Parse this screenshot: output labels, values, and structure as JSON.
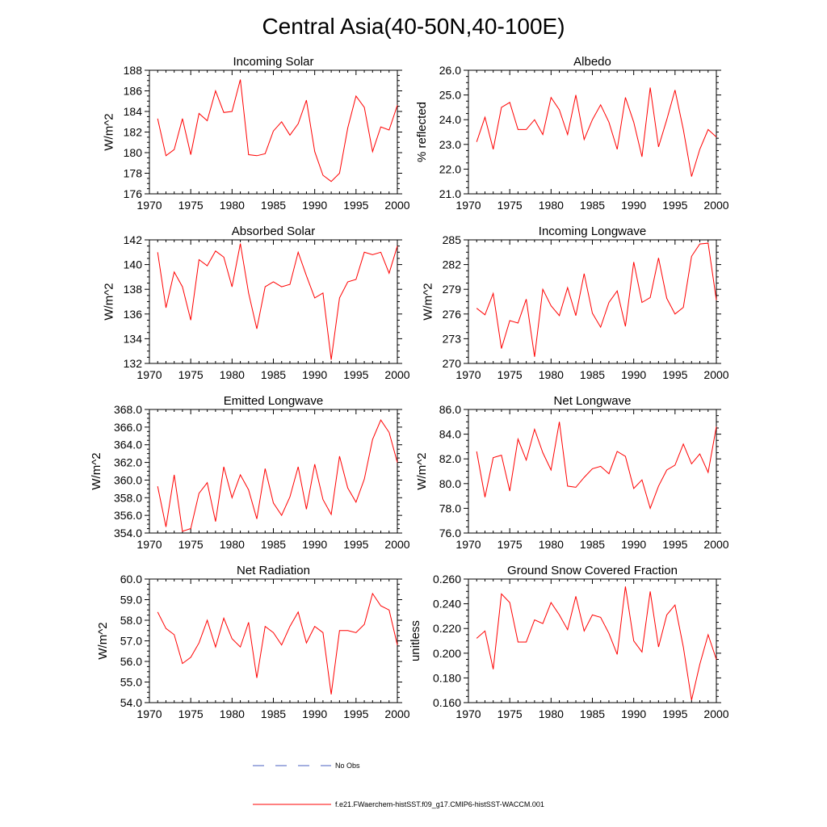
{
  "title": "Central Asia(40-50N,40-100E)",
  "legend": {
    "obs_label": "No Obs",
    "obs_color": "#4a5fc1",
    "model_label": "f.e21.FWaerchem-histSST.f09_g17.CMIP6-histSST-WACCM.001",
    "model_color": "#ff0000"
  },
  "chart_data": [
    {
      "type": "line",
      "title": "Incoming Solar",
      "ylabel": "W/m^2",
      "xlim": [
        1970,
        2000
      ],
      "ylim": [
        176,
        188
      ],
      "xticks": [
        "1970",
        "1975",
        "1980",
        "1985",
        "1990",
        "1995",
        "2000"
      ],
      "yticks": [
        "176",
        "178",
        "180",
        "182",
        "184",
        "186",
        "188"
      ],
      "x": [
        1971,
        1972,
        1973,
        1974,
        1975,
        1976,
        1977,
        1978,
        1979,
        1980,
        1981,
        1982,
        1983,
        1984,
        1985,
        1986,
        1987,
        1988,
        1989,
        1990,
        1991,
        1992,
        1993,
        1994,
        1995,
        1996,
        1997,
        1998,
        1999,
        2000
      ],
      "series": [
        {
          "color": "#ff0000",
          "values": [
            183.3,
            179.7,
            180.3,
            183.3,
            179.8,
            183.8,
            183.1,
            186.0,
            183.9,
            184.0,
            187.1,
            179.8,
            179.7,
            179.9,
            182.1,
            183.0,
            181.7,
            182.8,
            185.1,
            180.1,
            177.8,
            177.2,
            178.0,
            182.4,
            185.5,
            184.4,
            180.1,
            182.5,
            182.2,
            184.6
          ]
        }
      ]
    },
    {
      "type": "line",
      "title": "Albedo",
      "ylabel": "% reflected",
      "xlim": [
        1970,
        2000
      ],
      "ylim": [
        21.0,
        26.0
      ],
      "xticks": [
        "1970",
        "1975",
        "1980",
        "1985",
        "1990",
        "1995",
        "2000"
      ],
      "yticks": [
        "21.0",
        "22.0",
        "23.0",
        "24.0",
        "25.0",
        "26.0"
      ],
      "x": [
        1971,
        1972,
        1973,
        1974,
        1975,
        1976,
        1977,
        1978,
        1979,
        1980,
        1981,
        1982,
        1983,
        1984,
        1985,
        1986,
        1987,
        1988,
        1989,
        1990,
        1991,
        1992,
        1993,
        1994,
        1995,
        1996,
        1997,
        1998,
        1999,
        2000
      ],
      "series": [
        {
          "color": "#ff0000",
          "values": [
            23.1,
            24.1,
            22.8,
            24.5,
            24.7,
            23.6,
            23.6,
            24.0,
            23.4,
            24.9,
            24.4,
            23.4,
            25.0,
            23.2,
            24.0,
            24.6,
            23.9,
            22.8,
            24.9,
            23.9,
            22.5,
            25.3,
            22.9,
            24.0,
            25.2,
            23.6,
            21.7,
            22.8,
            23.6,
            23.3
          ]
        }
      ]
    },
    {
      "type": "line",
      "title": "Absorbed Solar",
      "ylabel": "W/m^2",
      "xlim": [
        1970,
        2000
      ],
      "ylim": [
        132,
        142
      ],
      "xticks": [
        "1970",
        "1975",
        "1980",
        "1985",
        "1990",
        "1995",
        "2000"
      ],
      "yticks": [
        "132",
        "134",
        "136",
        "138",
        "140",
        "142"
      ],
      "x": [
        1971,
        1972,
        1973,
        1974,
        1975,
        1976,
        1977,
        1978,
        1979,
        1980,
        1981,
        1982,
        1983,
        1984,
        1985,
        1986,
        1987,
        1988,
        1989,
        1990,
        1991,
        1992,
        1993,
        1994,
        1995,
        1996,
        1997,
        1998,
        1999,
        2000
      ],
      "series": [
        {
          "color": "#ff0000",
          "values": [
            141.0,
            136.5,
            139.4,
            138.2,
            135.5,
            140.4,
            139.9,
            141.1,
            140.6,
            138.2,
            141.7,
            137.7,
            134.8,
            138.2,
            138.6,
            138.2,
            138.4,
            141.0,
            139.1,
            137.3,
            137.7,
            132.3,
            137.3,
            138.6,
            138.8,
            141.0,
            140.8,
            141.0,
            139.3,
            141.5
          ]
        }
      ]
    },
    {
      "type": "line",
      "title": "Incoming Longwave",
      "ylabel": "W/m^2",
      "xlim": [
        1970,
        2000
      ],
      "ylim": [
        270,
        285
      ],
      "xticks": [
        "1970",
        "1975",
        "1980",
        "1985",
        "1990",
        "1995",
        "2000"
      ],
      "yticks": [
        "270",
        "273",
        "276",
        "279",
        "282",
        "285"
      ],
      "x": [
        1971,
        1972,
        1973,
        1974,
        1975,
        1976,
        1977,
        1978,
        1979,
        1980,
        1981,
        1982,
        1983,
        1984,
        1985,
        1986,
        1987,
        1988,
        1989,
        1990,
        1991,
        1992,
        1993,
        1994,
        1995,
        1996,
        1997,
        1998,
        1999,
        2000
      ],
      "series": [
        {
          "color": "#ff0000",
          "values": [
            276.7,
            275.9,
            278.5,
            271.8,
            275.2,
            274.9,
            277.8,
            270.8,
            279.0,
            277.0,
            275.8,
            279.2,
            275.8,
            280.9,
            276.1,
            274.4,
            277.4,
            278.8,
            274.5,
            282.3,
            277.4,
            278.0,
            282.8,
            277.9,
            276.0,
            276.8,
            283.0,
            284.5,
            284.6,
            277.7
          ]
        }
      ]
    },
    {
      "type": "line",
      "title": "Emitted Longwave",
      "ylabel": "W/m^2",
      "xlim": [
        1970,
        2000
      ],
      "ylim": [
        354.0,
        368.0
      ],
      "xticks": [
        "1970",
        "1975",
        "1980",
        "1985",
        "1990",
        "1995",
        "2000"
      ],
      "yticks": [
        "354.0",
        "356.0",
        "358.0",
        "360.0",
        "362.0",
        "364.0",
        "366.0",
        "368.0"
      ],
      "x": [
        1971,
        1972,
        1973,
        1974,
        1975,
        1976,
        1977,
        1978,
        1979,
        1980,
        1981,
        1982,
        1983,
        1984,
        1985,
        1986,
        1987,
        1988,
        1989,
        1990,
        1991,
        1992,
        1993,
        1994,
        1995,
        1996,
        1997,
        1998,
        1999,
        2000
      ],
      "series": [
        {
          "color": "#ff0000",
          "values": [
            359.3,
            354.7,
            360.6,
            354.2,
            354.5,
            358.5,
            359.7,
            355.3,
            361.5,
            358.0,
            360.6,
            358.9,
            355.6,
            361.3,
            357.4,
            356.0,
            358.1,
            361.5,
            356.7,
            361.8,
            357.8,
            356.1,
            362.7,
            359.1,
            357.5,
            360.1,
            364.6,
            366.8,
            365.4,
            362.0
          ]
        }
      ]
    },
    {
      "type": "line",
      "title": "Net Longwave",
      "ylabel": "W/m^2",
      "xlim": [
        1970,
        2000
      ],
      "ylim": [
        76.0,
        86.0
      ],
      "xticks": [
        "1970",
        "1975",
        "1980",
        "1985",
        "1990",
        "1995",
        "2000"
      ],
      "yticks": [
        "76.0",
        "78.0",
        "80.0",
        "82.0",
        "84.0",
        "86.0"
      ],
      "x": [
        1971,
        1972,
        1973,
        1974,
        1975,
        1976,
        1977,
        1978,
        1979,
        1980,
        1981,
        1982,
        1983,
        1984,
        1985,
        1986,
        1987,
        1988,
        1989,
        1990,
        1991,
        1992,
        1993,
        1994,
        1995,
        1996,
        1997,
        1998,
        1999,
        2000
      ],
      "series": [
        {
          "color": "#ff0000",
          "values": [
            82.6,
            78.9,
            82.1,
            82.3,
            79.4,
            83.6,
            81.9,
            84.4,
            82.5,
            81.1,
            85.0,
            79.8,
            79.7,
            80.5,
            81.2,
            81.4,
            80.8,
            82.6,
            82.2,
            79.6,
            80.3,
            78.0,
            79.8,
            81.1,
            81.5,
            83.2,
            81.6,
            82.4,
            80.9,
            84.6
          ]
        }
      ]
    },
    {
      "type": "line",
      "title": "Net Radiation",
      "ylabel": "W/m^2",
      "xlim": [
        1970,
        2000
      ],
      "ylim": [
        54.0,
        60.0
      ],
      "xticks": [
        "1970",
        "1975",
        "1980",
        "1985",
        "1990",
        "1995",
        "2000"
      ],
      "yticks": [
        "54.0",
        "55.0",
        "56.0",
        "57.0",
        "58.0",
        "59.0",
        "60.0"
      ],
      "x": [
        1971,
        1972,
        1973,
        1974,
        1975,
        1976,
        1977,
        1978,
        1979,
        1980,
        1981,
        1982,
        1983,
        1984,
        1985,
        1986,
        1987,
        1988,
        1989,
        1990,
        1991,
        1992,
        1993,
        1994,
        1995,
        1996,
        1997,
        1998,
        1999,
        2000
      ],
      "series": [
        {
          "color": "#ff0000",
          "values": [
            58.4,
            57.6,
            57.3,
            55.9,
            56.2,
            56.9,
            58.0,
            56.7,
            58.1,
            57.1,
            56.7,
            57.9,
            55.2,
            57.7,
            57.4,
            56.8,
            57.7,
            58.4,
            56.9,
            57.7,
            57.4,
            54.4,
            57.5,
            57.5,
            57.4,
            57.8,
            59.3,
            58.7,
            58.5,
            56.8
          ]
        }
      ]
    },
    {
      "type": "line",
      "title": "Ground Snow Covered Fraction",
      "ylabel": "unitless",
      "xlim": [
        1970,
        2000
      ],
      "ylim": [
        0.16,
        0.26
      ],
      "xticks": [
        "1970",
        "1975",
        "1980",
        "1985",
        "1990",
        "1995",
        "2000"
      ],
      "yticks": [
        "0.160",
        "0.180",
        "0.200",
        "0.220",
        "0.240",
        "0.260"
      ],
      "x": [
        1971,
        1972,
        1973,
        1974,
        1975,
        1976,
        1977,
        1978,
        1979,
        1980,
        1981,
        1982,
        1983,
        1984,
        1985,
        1986,
        1987,
        1988,
        1989,
        1990,
        1991,
        1992,
        1993,
        1994,
        1995,
        1996,
        1997,
        1998,
        1999,
        2000
      ],
      "series": [
        {
          "color": "#ff0000",
          "values": [
            0.212,
            0.218,
            0.187,
            0.248,
            0.241,
            0.209,
            0.209,
            0.227,
            0.224,
            0.241,
            0.231,
            0.219,
            0.246,
            0.218,
            0.231,
            0.229,
            0.216,
            0.199,
            0.254,
            0.21,
            0.201,
            0.25,
            0.205,
            0.231,
            0.239,
            0.205,
            0.162,
            0.191,
            0.215,
            0.195
          ]
        }
      ]
    }
  ]
}
